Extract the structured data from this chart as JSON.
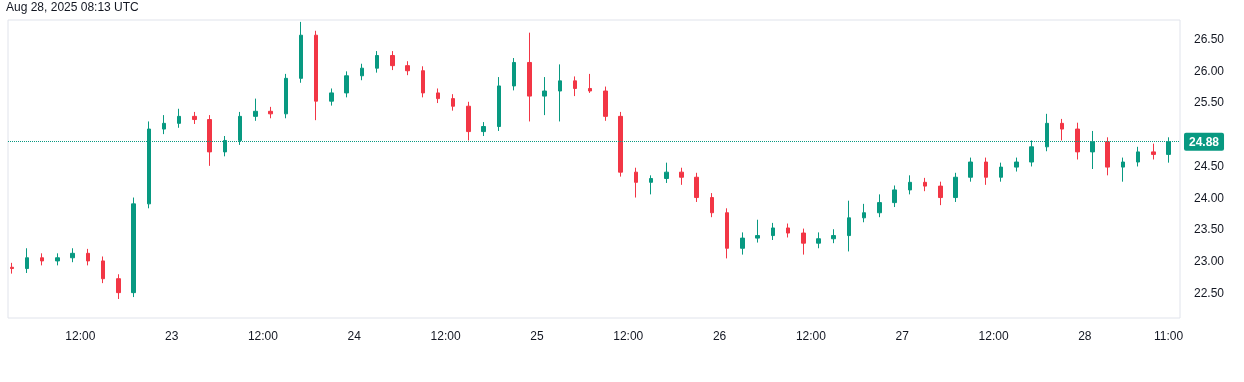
{
  "chart_data": {
    "type": "candlestick",
    "annotations": [
      "Aug 28, 2025 08:13 UTC"
    ],
    "x": [
      "--08-22T03:00",
      "--08-22T05:00",
      "--08-22T07:00",
      "--08-22T09:00",
      "--08-22T11:00",
      "--08-22T13:00",
      "--08-22T15:00",
      "--08-22T17:00",
      "--08-22T19:00",
      "--08-22T21:00",
      "--08-22T23:00",
      "--08-23T01:00",
      "--08-23T03:00",
      "--08-23T05:00",
      "--08-23T07:00",
      "--08-23T09:00",
      "--08-23T11:00",
      "--08-23T13:00",
      "--08-23T15:00",
      "--08-23T17:00",
      "--08-23T19:00",
      "--08-23T21:00",
      "--08-23T23:00",
      "--08-24T01:00",
      "--08-24T03:00",
      "--08-24T05:00",
      "--08-24T07:00",
      "--08-24T09:00",
      "--08-24T11:00",
      "--08-24T13:00",
      "--08-24T15:00",
      "--08-24T17:00",
      "--08-24T19:00",
      "--08-24T21:00",
      "--08-24T23:00",
      "--08-25T01:00",
      "--08-25T03:00",
      "--08-25T05:00",
      "--08-25T07:00",
      "--08-25T09:00",
      "--08-25T11:00",
      "--08-25T13:00",
      "--08-25T15:00",
      "--08-25T17:00",
      "--08-25T19:00",
      "--08-25T21:00",
      "--08-25T23:00",
      "--08-26T01:00",
      "--08-26T03:00",
      "--08-26T05:00",
      "--08-26T07:00",
      "--08-26T09:00",
      "--08-26T11:00",
      "--08-26T13:00",
      "--08-26T15:00",
      "--08-26T17:00",
      "--08-26T19:00",
      "--08-26T21:00",
      "--08-26T23:00",
      "--08-27T01:00",
      "--08-27T03:00",
      "--08-27T05:00",
      "--08-27T07:00",
      "--08-27T09:00",
      "--08-27T11:00",
      "--08-27T13:00",
      "--08-27T15:00",
      "--08-27T17:00",
      "--08-27T19:00",
      "--08-27T21:00",
      "--08-27T23:00",
      "--08-28T01:00",
      "--08-28T03:00",
      "--08-28T05:00",
      "--08-28T07:00",
      "--08-28T09:00",
      "--08-28T11:00"
    ],
    "ohlc": [
      [
        22.9,
        22.97,
        22.8,
        22.88
      ],
      [
        22.88,
        23.2,
        22.81,
        23.05
      ],
      [
        23.05,
        23.12,
        22.93,
        23.0
      ],
      [
        23.0,
        23.12,
        22.93,
        23.05
      ],
      [
        23.05,
        23.2,
        22.98,
        23.12
      ],
      [
        23.12,
        23.19,
        22.93,
        23.0
      ],
      [
        23.0,
        23.07,
        22.65,
        22.72
      ],
      [
        22.72,
        22.79,
        22.4,
        22.5
      ],
      [
        22.5,
        24.0,
        22.43,
        23.9
      ],
      [
        23.9,
        25.2,
        23.83,
        25.08
      ],
      [
        25.08,
        25.3,
        25.0,
        25.17
      ],
      [
        25.17,
        25.4,
        25.1,
        25.28
      ],
      [
        25.28,
        25.35,
        25.16,
        25.23
      ],
      [
        25.23,
        25.3,
        24.5,
        24.72
      ],
      [
        24.72,
        24.97,
        24.65,
        24.9
      ],
      [
        24.9,
        25.35,
        24.83,
        25.28
      ],
      [
        25.28,
        25.56,
        25.21,
        25.36
      ],
      [
        25.36,
        25.43,
        25.25,
        25.32
      ],
      [
        25.32,
        25.95,
        25.25,
        25.88
      ],
      [
        25.88,
        26.77,
        25.81,
        26.56
      ],
      [
        26.56,
        26.63,
        25.22,
        25.52
      ],
      [
        25.52,
        25.72,
        25.45,
        25.65
      ],
      [
        25.65,
        25.99,
        25.58,
        25.92
      ],
      [
        25.92,
        26.11,
        25.85,
        26.04
      ],
      [
        26.04,
        26.31,
        25.97,
        26.24
      ],
      [
        26.24,
        26.31,
        26.01,
        26.08
      ],
      [
        26.08,
        26.15,
        25.93,
        26.0
      ],
      [
        26.0,
        26.07,
        25.58,
        25.65
      ],
      [
        25.65,
        25.72,
        25.49,
        25.56
      ],
      [
        25.56,
        25.63,
        25.37,
        25.44
      ],
      [
        25.44,
        25.51,
        24.9,
        25.04
      ],
      [
        25.04,
        25.19,
        24.97,
        25.12
      ],
      [
        25.12,
        25.9,
        25.05,
        25.76
      ],
      [
        25.76,
        26.2,
        25.69,
        26.13
      ],
      [
        26.13,
        26.6,
        25.2,
        25.6
      ],
      [
        25.6,
        25.9,
        25.3,
        25.68
      ],
      [
        25.68,
        26.1,
        25.2,
        25.84
      ],
      [
        25.84,
        25.91,
        25.6,
        25.72
      ],
      [
        25.72,
        25.95,
        25.65,
        25.68
      ],
      [
        25.68,
        25.75,
        25.21,
        25.28
      ],
      [
        25.28,
        25.35,
        24.33,
        24.4
      ],
      [
        24.4,
        24.47,
        24.0,
        24.24
      ],
      [
        24.24,
        24.35,
        24.05,
        24.3
      ],
      [
        24.3,
        24.55,
        24.23,
        24.4
      ],
      [
        24.4,
        24.47,
        24.2,
        24.32
      ],
      [
        24.32,
        24.39,
        23.93,
        24.0
      ],
      [
        24.0,
        24.07,
        23.69,
        23.76
      ],
      [
        23.76,
        23.83,
        23.04,
        23.2
      ],
      [
        23.2,
        23.45,
        23.1,
        23.36
      ],
      [
        23.36,
        23.65,
        23.29,
        23.4
      ],
      [
        23.4,
        23.6,
        23.33,
        23.52
      ],
      [
        23.52,
        23.59,
        23.37,
        23.44
      ],
      [
        23.44,
        23.51,
        23.1,
        23.28
      ],
      [
        23.28,
        23.45,
        23.2,
        23.35
      ],
      [
        23.35,
        23.5,
        23.28,
        23.4
      ],
      [
        23.4,
        23.95,
        23.15,
        23.68
      ],
      [
        23.68,
        23.9,
        23.61,
        23.76
      ],
      [
        23.76,
        24.05,
        23.69,
        23.92
      ],
      [
        23.92,
        24.19,
        23.85,
        24.12
      ],
      [
        24.12,
        24.35,
        24.05,
        24.24
      ],
      [
        24.24,
        24.31,
        24.1,
        24.18
      ],
      [
        24.18,
        24.25,
        23.88,
        24.0
      ],
      [
        24.0,
        24.39,
        23.93,
        24.32
      ],
      [
        24.32,
        24.63,
        24.25,
        24.56
      ],
      [
        24.56,
        24.63,
        24.2,
        24.32
      ],
      [
        24.32,
        24.55,
        24.25,
        24.48
      ],
      [
        24.48,
        24.63,
        24.41,
        24.56
      ],
      [
        24.56,
        24.9,
        24.49,
        24.8
      ],
      [
        24.8,
        25.32,
        24.73,
        25.17
      ],
      [
        25.17,
        25.24,
        24.9,
        25.08
      ],
      [
        25.08,
        25.18,
        24.6,
        24.72
      ],
      [
        24.72,
        25.05,
        24.45,
        24.88
      ],
      [
        24.88,
        24.95,
        24.35,
        24.48
      ],
      [
        24.48,
        24.63,
        24.25,
        24.56
      ],
      [
        24.56,
        24.8,
        24.49,
        24.72
      ],
      [
        24.72,
        24.85,
        24.6,
        24.68
      ],
      [
        24.68,
        24.95,
        24.55,
        24.88
      ]
    ],
    "colors": [
      "#f23645",
      "#089981",
      "#f23645",
      "#089981",
      "#089981",
      "#f23645",
      "#f23645",
      "#f23645",
      "#089981",
      "#089981",
      "#089981",
      "#089981",
      "#f23645",
      "#f23645",
      "#089981",
      "#089981",
      "#089981",
      "#f23645",
      "#089981",
      "#089981",
      "#f23645",
      "#089981",
      "#089981",
      "#089981",
      "#089981",
      "#f23645",
      "#f23645",
      "#f23645",
      "#f23645",
      "#f23645",
      "#f23645",
      "#089981",
      "#089981",
      "#089981",
      "#f23645",
      "#089981",
      "#089981",
      "#f23645",
      "#f23645",
      "#f23645",
      "#f23645",
      "#f23645",
      "#089981",
      "#089981",
      "#f23645",
      "#f23645",
      "#f23645",
      "#f23645",
      "#089981",
      "#089981",
      "#089981",
      "#f23645",
      "#f23645",
      "#089981",
      "#089981",
      "#089981",
      "#089981",
      "#089981",
      "#089981",
      "#089981",
      "#f23645",
      "#f23645",
      "#089981",
      "#089981",
      "#f23645",
      "#089981",
      "#089981",
      "#089981",
      "#089981",
      "#f23645",
      "#f23645",
      "#089981",
      "#f23645",
      "#089981",
      "#089981",
      "#f23645",
      "#089981"
    ],
    "xlim": [
      "--08-22T02:30",
      "--08-28T12:30"
    ],
    "xticks": [
      {
        "value": "--08-22T12:00",
        "label": "12:00"
      },
      {
        "value": "--08-23T00:00",
        "label": "23"
      },
      {
        "value": "--08-23T12:00",
        "label": "12:00"
      },
      {
        "value": "--08-24T00:00",
        "label": "24"
      },
      {
        "value": "--08-24T12:00",
        "label": "12:00"
      },
      {
        "value": "--08-25T00:00",
        "label": "25"
      },
      {
        "value": "--08-25T12:00",
        "label": "12:00"
      },
      {
        "value": "--08-26T00:00",
        "label": "26"
      },
      {
        "value": "--08-26T12:00",
        "label": "12:00"
      },
      {
        "value": "--08-27T00:00",
        "label": "27"
      },
      {
        "value": "--08-27T12:00",
        "label": "12:00"
      },
      {
        "value": "--08-28T00:00",
        "label": "28"
      },
      {
        "value": "--08-28T11:00",
        "label": "11:00"
      }
    ],
    "ylim": [
      22.1,
      26.8
    ],
    "yticks": [
      {
        "value": 22.5,
        "label": "22.50"
      },
      {
        "value": 23,
        "label": "23.00"
      },
      {
        "value": 23.5,
        "label": "23.50"
      },
      {
        "value": 24,
        "label": "24.00"
      },
      {
        "value": 24.5,
        "label": "24.50"
      },
      {
        "value": 25.5,
        "label": "25.50"
      },
      {
        "value": 26,
        "label": "26.00"
      },
      {
        "value": 26.5,
        "label": "26.50"
      }
    ],
    "ref_lines": [
      {
        "axis": "y",
        "value": 24.88,
        "label": "24.88",
        "color": "#089981",
        "line_style": "dotted"
      }
    ],
    "grid": false
  }
}
